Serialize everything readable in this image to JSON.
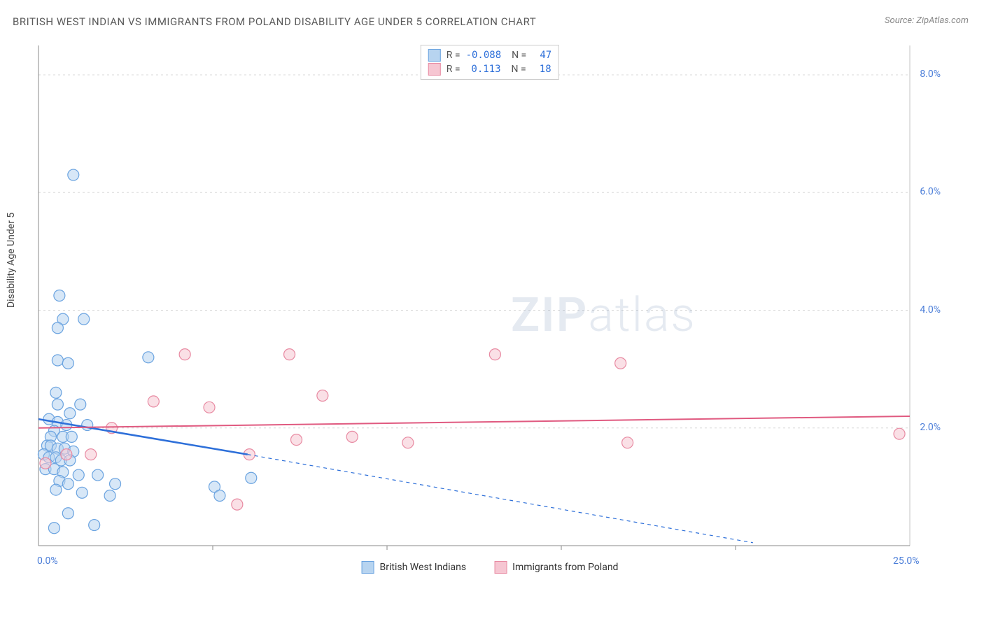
{
  "title": "BRITISH WEST INDIAN VS IMMIGRANTS FROM POLAND DISABILITY AGE UNDER 5 CORRELATION CHART",
  "source": "Source: ZipAtlas.com",
  "ylabel": "Disability Age Under 5",
  "watermark": {
    "prefix": "ZIP",
    "suffix": "atlas"
  },
  "chart": {
    "type": "scatter-with-regression",
    "xlim": [
      0,
      25
    ],
    "ylim": [
      0,
      8.5
    ],
    "yticks": [
      {
        "v": 2.0,
        "label": "2.0%"
      },
      {
        "v": 4.0,
        "label": "4.0%"
      },
      {
        "v": 6.0,
        "label": "6.0%"
      },
      {
        "v": 8.0,
        "label": "8.0%"
      }
    ],
    "xticks": [
      {
        "v": 0.0,
        "label": "0.0%"
      },
      {
        "v": 25.0,
        "label": "25.0%"
      }
    ],
    "xtick_majors": [
      5,
      10,
      15,
      20
    ],
    "grid_color": "#d8d8d8",
    "axis_color": "#888888",
    "background": "#ffffff",
    "marker_radius": 8,
    "marker_stroke_width": 1.2,
    "series": [
      {
        "name": "British West Indians",
        "fill": "#b7d4f0",
        "stroke": "#6aa3e0",
        "fill_opacity": 0.55,
        "R": "-0.088",
        "N": "47",
        "regression": {
          "color": "#2d6fd9",
          "width": 2.5,
          "x1": 0,
          "y1": 2.15,
          "x2": 6.0,
          "y2": 1.55,
          "dash_x2": 20.5,
          "dash_y2": 0.05
        },
        "points": [
          [
            1.0,
            6.3
          ],
          [
            0.6,
            4.25
          ],
          [
            0.7,
            3.85
          ],
          [
            1.3,
            3.85
          ],
          [
            0.55,
            3.7
          ],
          [
            0.55,
            3.15
          ],
          [
            3.15,
            3.2
          ],
          [
            0.85,
            3.1
          ],
          [
            0.5,
            2.6
          ],
          [
            0.55,
            2.4
          ],
          [
            1.2,
            2.4
          ],
          [
            0.9,
            2.25
          ],
          [
            0.3,
            2.15
          ],
          [
            0.55,
            2.1
          ],
          [
            0.8,
            2.05
          ],
          [
            1.4,
            2.05
          ],
          [
            0.45,
            1.95
          ],
          [
            0.35,
            1.85
          ],
          [
            0.7,
            1.85
          ],
          [
            0.95,
            1.85
          ],
          [
            0.25,
            1.7
          ],
          [
            0.35,
            1.7
          ],
          [
            0.55,
            1.65
          ],
          [
            0.75,
            1.65
          ],
          [
            1.0,
            1.6
          ],
          [
            0.15,
            1.55
          ],
          [
            0.3,
            1.5
          ],
          [
            0.5,
            1.5
          ],
          [
            0.65,
            1.45
          ],
          [
            0.9,
            1.45
          ],
          [
            0.2,
            1.3
          ],
          [
            0.45,
            1.3
          ],
          [
            0.7,
            1.25
          ],
          [
            1.15,
            1.2
          ],
          [
            1.7,
            1.2
          ],
          [
            0.6,
            1.1
          ],
          [
            0.85,
            1.05
          ],
          [
            2.2,
            1.05
          ],
          [
            6.1,
            1.15
          ],
          [
            0.5,
            0.95
          ],
          [
            1.25,
            0.9
          ],
          [
            2.05,
            0.85
          ],
          [
            5.05,
            1.0
          ],
          [
            5.2,
            0.85
          ],
          [
            0.85,
            0.55
          ],
          [
            1.6,
            0.35
          ],
          [
            0.45,
            0.3
          ]
        ]
      },
      {
        "name": "Immigrants from Poland",
        "fill": "#f6c6d2",
        "stroke": "#e88aa2",
        "fill_opacity": 0.55,
        "R": "0.113",
        "N": "18",
        "regression": {
          "color": "#e05a80",
          "width": 2,
          "x1": 0,
          "y1": 2.0,
          "x2": 25.0,
          "y2": 2.2
        },
        "points": [
          [
            4.2,
            3.25
          ],
          [
            7.2,
            3.25
          ],
          [
            13.1,
            3.25
          ],
          [
            16.7,
            3.1
          ],
          [
            3.3,
            2.45
          ],
          [
            8.15,
            2.55
          ],
          [
            4.9,
            2.35
          ],
          [
            2.1,
            2.0
          ],
          [
            7.4,
            1.8
          ],
          [
            9.0,
            1.85
          ],
          [
            10.6,
            1.75
          ],
          [
            16.9,
            1.75
          ],
          [
            24.7,
            1.9
          ],
          [
            6.05,
            1.55
          ],
          [
            0.8,
            1.55
          ],
          [
            1.5,
            1.55
          ],
          [
            0.2,
            1.4
          ],
          [
            5.7,
            0.7
          ]
        ]
      }
    ]
  },
  "legend_bottom": [
    {
      "label": "British West Indians",
      "fill": "#b7d4f0",
      "stroke": "#6aa3e0"
    },
    {
      "label": "Immigrants from Poland",
      "fill": "#f6c6d2",
      "stroke": "#e88aa2"
    }
  ]
}
